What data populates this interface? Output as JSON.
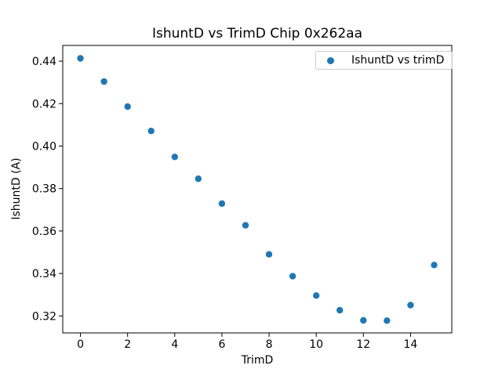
{
  "chart_data": {
    "type": "scatter",
    "title": "IshuntD vs TrimD Chip 0x262aa",
    "xlabel": "TrimD",
    "ylabel": "IshuntD (A)",
    "legend": {
      "label": "IshuntD vs trimD",
      "position": "upper right"
    },
    "x": [
      0,
      1,
      2,
      3,
      4,
      5,
      6,
      7,
      8,
      9,
      10,
      11,
      12,
      13,
      14,
      15
    ],
    "y": [
      0.4413,
      0.4304,
      0.4186,
      0.4071,
      0.3949,
      0.3846,
      0.3729,
      0.3627,
      0.349,
      0.3387,
      0.3296,
      0.3227,
      0.3179,
      0.3178,
      0.3251,
      0.344
    ],
    "xlim": [
      -0.75,
      15.75
    ],
    "ylim": [
      0.312,
      0.4474
    ],
    "xticks": {
      "values": [
        0,
        2,
        4,
        6,
        8,
        10,
        12,
        14
      ],
      "labels": [
        "0",
        "2",
        "4",
        "6",
        "8",
        "10",
        "12",
        "14"
      ]
    },
    "yticks": {
      "values": [
        0.32,
        0.34,
        0.36,
        0.38,
        0.4,
        0.42,
        0.44
      ],
      "labels": [
        "0.32",
        "0.34",
        "0.36",
        "0.38",
        "0.40",
        "0.42",
        "0.44"
      ]
    },
    "grid": false,
    "colors": {
      "marker": "#1f77b4",
      "axis": "#000000",
      "text": "#000000",
      "legend_border": "#cccccc",
      "background": "#ffffff"
    }
  }
}
